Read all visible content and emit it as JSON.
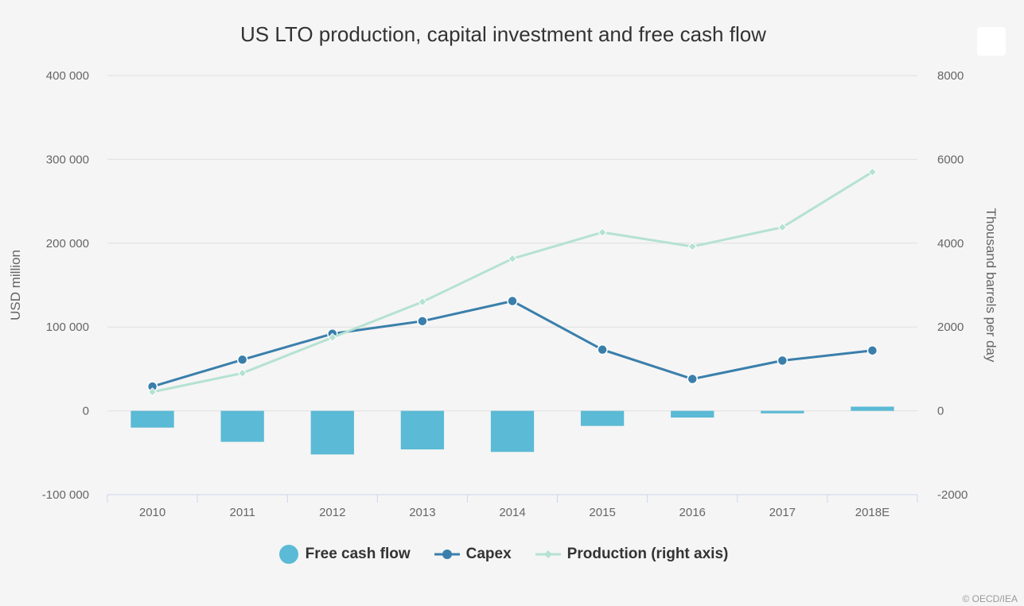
{
  "chart_data": {
    "type": "bar+line",
    "title": "US LTO production, capital investment and free cash flow",
    "categories": [
      "2010",
      "2011",
      "2012",
      "2013",
      "2014",
      "2015",
      "2016",
      "2017",
      "2018E"
    ],
    "y_left": {
      "label": "USD million",
      "range": [
        -100000,
        400000
      ],
      "ticks": [
        -100000,
        0,
        100000,
        200000,
        300000,
        400000
      ],
      "tick_labels": [
        "-100 000",
        "0",
        "100 000",
        "200 000",
        "300 000",
        "400 000"
      ]
    },
    "y_right": {
      "label": "Thousand barrels per day",
      "range": [
        -2000,
        8000
      ],
      "ticks": [
        -2000,
        0,
        2000,
        4000,
        6000,
        8000
      ],
      "tick_labels": [
        "-2000",
        "0",
        "2000",
        "4000",
        "6000",
        "8000"
      ]
    },
    "series": [
      {
        "name": "Free cash flow",
        "type": "bar",
        "axis": "left",
        "color": "#5bbad5",
        "values": [
          -20000,
          -37000,
          -52000,
          -46000,
          -49000,
          -18000,
          -8000,
          -3000,
          5000
        ]
      },
      {
        "name": "Capex",
        "type": "line",
        "axis": "left",
        "color": "#3a7fab",
        "values": [
          29000,
          61000,
          92000,
          107000,
          131000,
          73000,
          38000,
          60000,
          72000
        ]
      },
      {
        "name": "Production (right axis)",
        "type": "line",
        "axis": "right",
        "color": "#b5e2d2",
        "values": [
          450,
          900,
          1750,
          2600,
          3630,
          4260,
          3920,
          4380,
          5700
        ]
      }
    ],
    "grid": true,
    "legend_position": "bottom-center"
  },
  "credit": "© OECD/IEA",
  "icons": {
    "menu": "menu-icon"
  }
}
